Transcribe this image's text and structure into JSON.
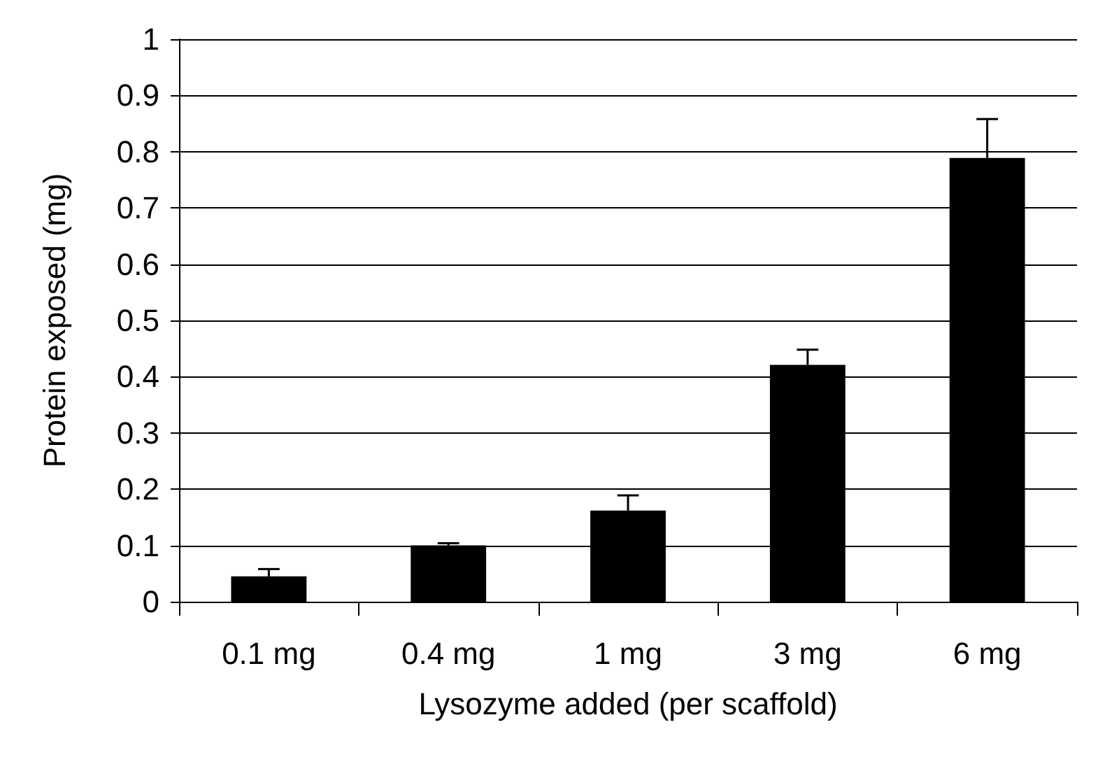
{
  "chart_data": {
    "type": "bar",
    "xlabel": "Lysozyme added (per scaffold)",
    "ylabel": "Protein exposed (mg)",
    "categories": [
      "0.1 mg",
      "0.4 mg",
      "1 mg",
      "3 mg",
      "6 mg"
    ],
    "values": [
      0.045,
      0.1,
      0.162,
      0.421,
      0.789
    ],
    "errors": [
      [
        0.045,
        0.058
      ],
      [
        0.1,
        0.104
      ],
      [
        0.162,
        0.189
      ],
      [
        0.421,
        0.448
      ],
      [
        0.789,
        0.858
      ]
    ],
    "color": "#000000",
    "ylim": [
      0,
      1
    ],
    "yticks": [
      0,
      0.1,
      0.2,
      0.3,
      0.4,
      0.5,
      0.6,
      0.7,
      0.8,
      0.9,
      1
    ],
    "grid": "y"
  }
}
